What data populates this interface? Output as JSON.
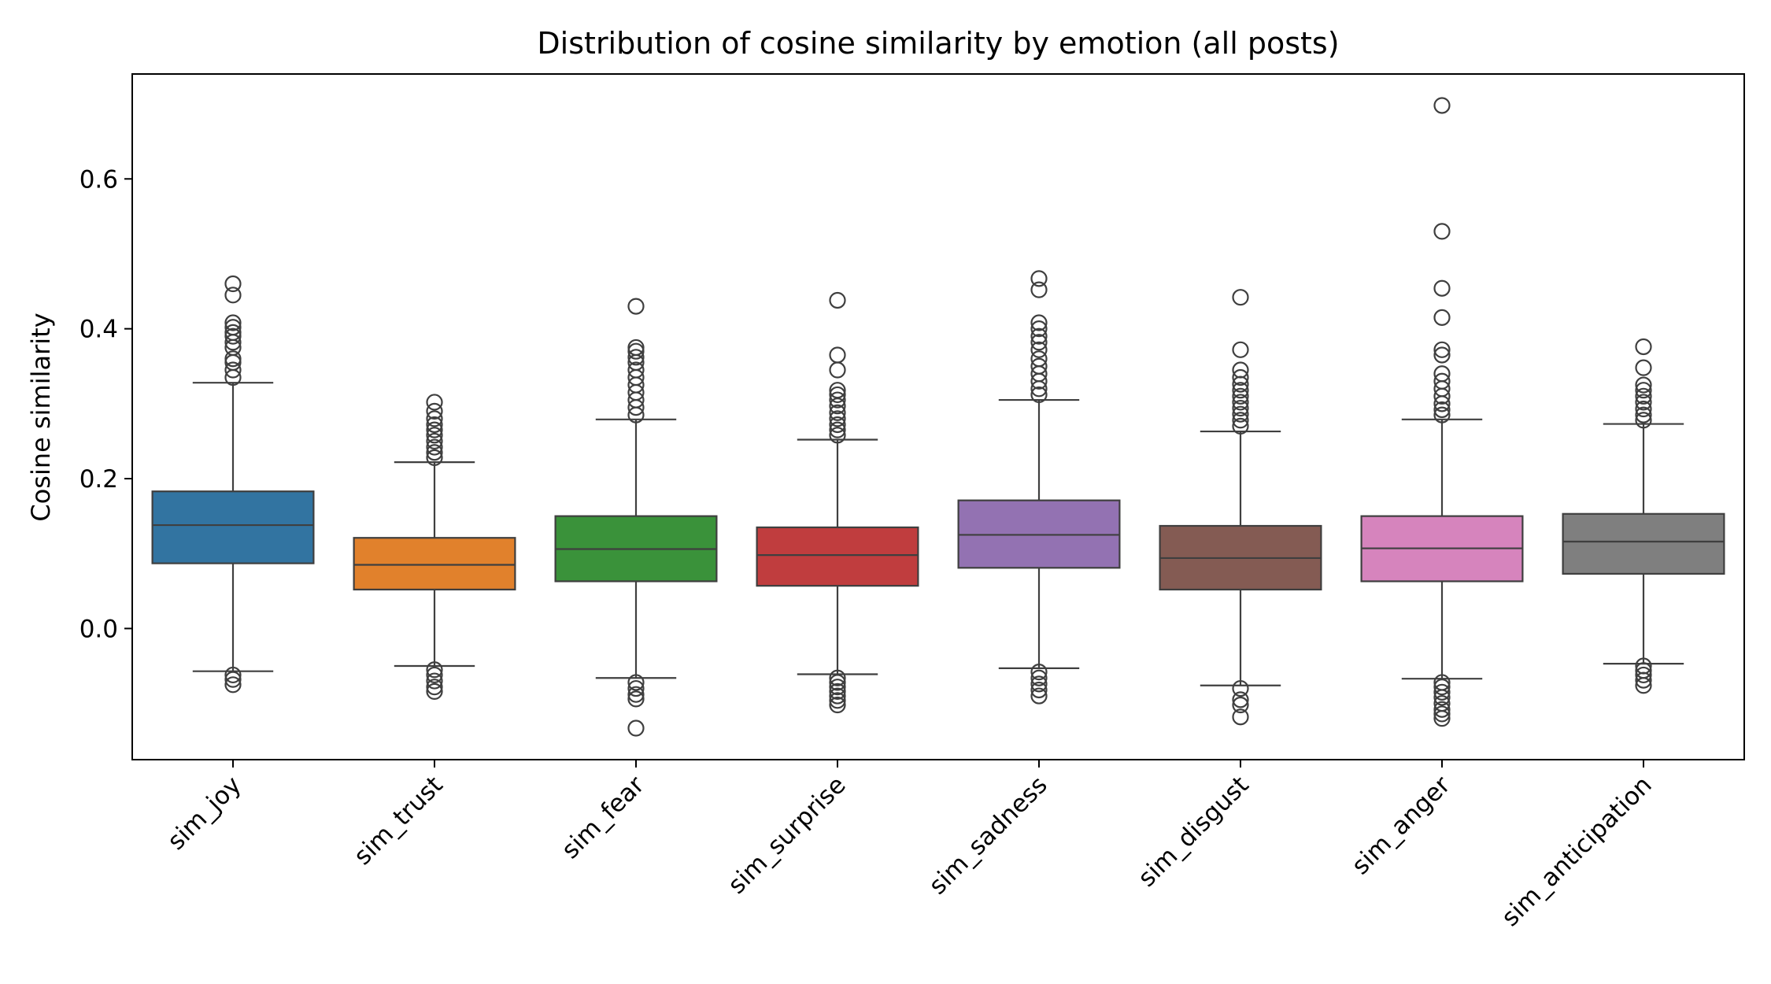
{
  "chart_data": {
    "type": "box",
    "title": "Distribution of cosine similarity by emotion (all posts)",
    "xlabel": "",
    "ylabel": "Cosine similarity",
    "ylim": [
      -0.175,
      0.74
    ],
    "yticks": [
      0.0,
      0.2,
      0.4,
      0.6
    ],
    "grid": false,
    "categories": [
      "sim_joy",
      "sim_trust",
      "sim_fear",
      "sim_surprise",
      "sim_sadness",
      "sim_disgust",
      "sim_anger",
      "sim_anticipation"
    ],
    "colors": [
      "#3274a1",
      "#e1812c",
      "#3a923a",
      "#c03d3e",
      "#9372b2",
      "#845b53",
      "#d684bd",
      "#7f7f7f"
    ],
    "boxes": [
      {
        "q1": 0.087,
        "median": 0.138,
        "q3": 0.183,
        "whisker_low": -0.057,
        "whisker_high": 0.328,
        "outliers_high": [
          0.335,
          0.345,
          0.355,
          0.36,
          0.375,
          0.382,
          0.39,
          0.395,
          0.402,
          0.408,
          0.445,
          0.46
        ],
        "outliers_low": [
          -0.062,
          -0.068,
          -0.075
        ]
      },
      {
        "q1": 0.052,
        "median": 0.085,
        "q3": 0.121,
        "whisker_low": -0.05,
        "whisker_high": 0.222,
        "outliers_high": [
          0.228,
          0.235,
          0.242,
          0.25,
          0.258,
          0.265,
          0.272,
          0.28,
          0.29,
          0.302
        ],
        "outliers_low": [
          -0.055,
          -0.062,
          -0.07,
          -0.078,
          -0.084
        ]
      },
      {
        "q1": 0.063,
        "median": 0.106,
        "q3": 0.15,
        "whisker_low": -0.066,
        "whisker_high": 0.279,
        "outliers_high": [
          0.285,
          0.295,
          0.305,
          0.315,
          0.325,
          0.335,
          0.345,
          0.355,
          0.362,
          0.37,
          0.375,
          0.43
        ],
        "outliers_low": [
          -0.072,
          -0.08,
          -0.088,
          -0.094,
          -0.133
        ]
      },
      {
        "q1": 0.057,
        "median": 0.098,
        "q3": 0.135,
        "whisker_low": -0.061,
        "whisker_high": 0.252,
        "outliers_high": [
          0.258,
          0.265,
          0.272,
          0.28,
          0.288,
          0.297,
          0.305,
          0.312,
          0.318,
          0.345,
          0.365,
          0.438
        ],
        "outliers_low": [
          -0.066,
          -0.072,
          -0.078,
          -0.084,
          -0.09,
          -0.096,
          -0.102
        ]
      },
      {
        "q1": 0.081,
        "median": 0.125,
        "q3": 0.171,
        "whisker_low": -0.053,
        "whisker_high": 0.305,
        "outliers_high": [
          0.312,
          0.32,
          0.33,
          0.34,
          0.35,
          0.36,
          0.372,
          0.382,
          0.39,
          0.4,
          0.408,
          0.452,
          0.467
        ],
        "outliers_low": [
          -0.058,
          -0.066,
          -0.074,
          -0.082,
          -0.09
        ]
      },
      {
        "q1": 0.052,
        "median": 0.094,
        "q3": 0.137,
        "whisker_low": -0.076,
        "whisker_high": 0.263,
        "outliers_high": [
          0.27,
          0.278,
          0.286,
          0.294,
          0.302,
          0.31,
          0.318,
          0.326,
          0.335,
          0.345,
          0.372,
          0.442
        ],
        "outliers_low": [
          -0.08,
          -0.095,
          -0.102,
          -0.118
        ]
      },
      {
        "q1": 0.063,
        "median": 0.107,
        "q3": 0.15,
        "whisker_low": -0.067,
        "whisker_high": 0.279,
        "outliers_high": [
          0.285,
          0.292,
          0.3,
          0.31,
          0.32,
          0.33,
          0.34,
          0.365,
          0.372,
          0.415,
          0.454,
          0.53,
          0.698
        ],
        "outliers_low": [
          -0.072,
          -0.078,
          -0.085,
          -0.092,
          -0.1,
          -0.108,
          -0.114,
          -0.12
        ]
      },
      {
        "q1": 0.073,
        "median": 0.116,
        "q3": 0.153,
        "whisker_low": -0.047,
        "whisker_high": 0.273,
        "outliers_high": [
          0.278,
          0.285,
          0.293,
          0.302,
          0.31,
          0.318,
          0.325,
          0.348,
          0.376
        ],
        "outliers_low": [
          -0.05,
          -0.056,
          -0.062,
          -0.069,
          -0.076
        ]
      }
    ]
  }
}
